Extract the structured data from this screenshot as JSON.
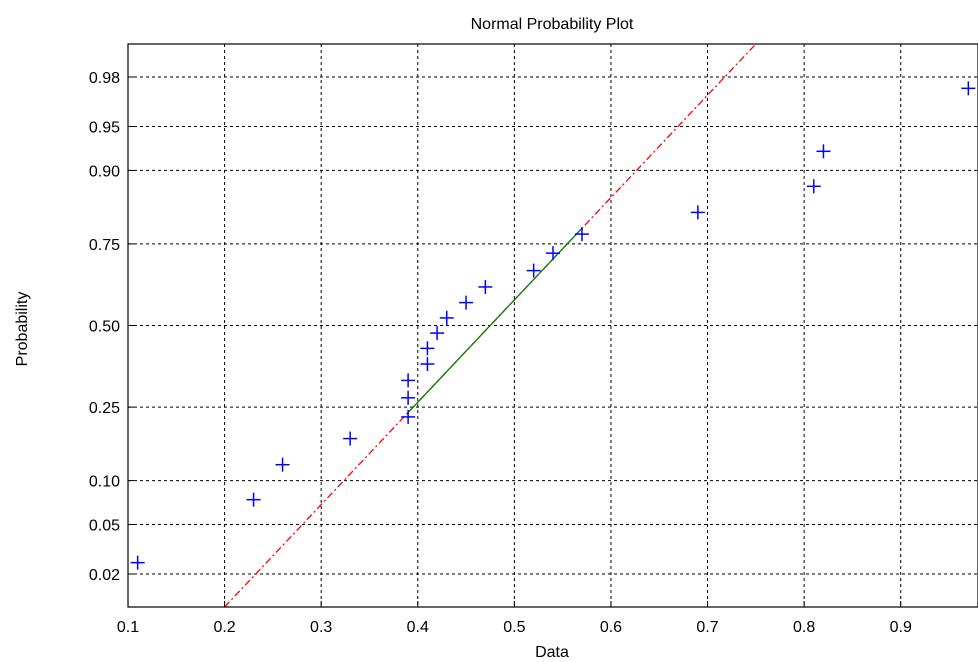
{
  "chart_data": {
    "type": "scatter",
    "title": "Normal Probability Plot",
    "xlabel": "Data",
    "ylabel": "Probability",
    "xlim": [
      0.1,
      0.98
    ],
    "ylim": [
      0.01,
      0.99
    ],
    "y_scale": "normal-probability",
    "grid": true,
    "x_ticks": [
      0.1,
      0.2,
      0.3,
      0.4,
      0.5,
      0.6,
      0.7,
      0.8,
      0.9
    ],
    "x_tick_labels": [
      "0.1",
      "0.2",
      "0.3",
      "0.4",
      "0.5",
      "0.6",
      "0.7",
      "0.8",
      "0.9"
    ],
    "y_ticks": [
      0.02,
      0.05,
      0.1,
      0.25,
      0.5,
      0.75,
      0.9,
      0.95,
      0.98
    ],
    "y_tick_labels": [
      "0.02",
      "0.05",
      "0.10",
      "0.25",
      "0.50",
      "0.75",
      "0.90",
      "0.95",
      "0.98"
    ],
    "points": {
      "marker": "+",
      "color": "#0000ff",
      "x": [
        0.11,
        0.23,
        0.26,
        0.33,
        0.39,
        0.39,
        0.39,
        0.41,
        0.41,
        0.42,
        0.43,
        0.45,
        0.47,
        0.52,
        0.54,
        0.57,
        0.69,
        0.81,
        0.82,
        0.97
      ],
      "y": [
        0.025,
        0.075,
        0.125,
        0.175,
        0.225,
        0.275,
        0.325,
        0.375,
        0.425,
        0.475,
        0.525,
        0.575,
        0.625,
        0.675,
        0.725,
        0.775,
        0.825,
        0.875,
        0.925,
        0.975
      ]
    },
    "reference_line": {
      "color": "#ff0000",
      "style": "dash-dot",
      "p1": {
        "x": 0.2,
        "y": 0.01
      },
      "p2": {
        "x": 0.75,
        "y": 0.99
      }
    },
    "fit_segment": {
      "color": "#008000",
      "style": "solid",
      "x_start": 0.39,
      "x_end": 0.57
    }
  }
}
